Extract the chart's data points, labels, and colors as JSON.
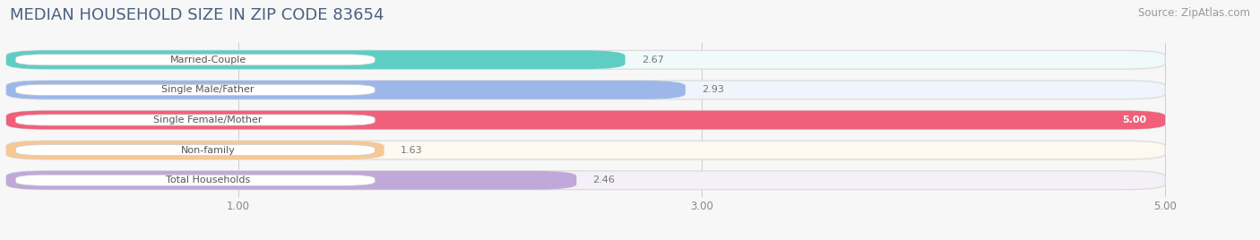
{
  "title": "MEDIAN HOUSEHOLD SIZE IN ZIP CODE 83654",
  "source": "Source: ZipAtlas.com",
  "categories": [
    "Married-Couple",
    "Single Male/Father",
    "Single Female/Mother",
    "Non-family",
    "Total Households"
  ],
  "values": [
    2.67,
    2.93,
    5.0,
    1.63,
    2.46
  ],
  "bar_colors": [
    "#5ecec5",
    "#9db8e8",
    "#f0607a",
    "#f5c896",
    "#c0a8d8"
  ],
  "bar_bg_colors": [
    "#f0fafa",
    "#f0f4fc",
    "#fdf0f4",
    "#fdf8f0",
    "#f4f0f8"
  ],
  "xlim": [
    0,
    5.3
  ],
  "xmin": 0,
  "xmax": 5.0,
  "xticks": [
    1.0,
    3.0,
    5.0
  ],
  "value_labels": [
    "2.67",
    "2.93",
    "5.00",
    "1.63",
    "2.46"
  ],
  "bg_color": "#f7f7f7",
  "title_color": "#4a6080",
  "title_fontsize": 13,
  "source_fontsize": 8.5,
  "label_bg": "#ffffff"
}
